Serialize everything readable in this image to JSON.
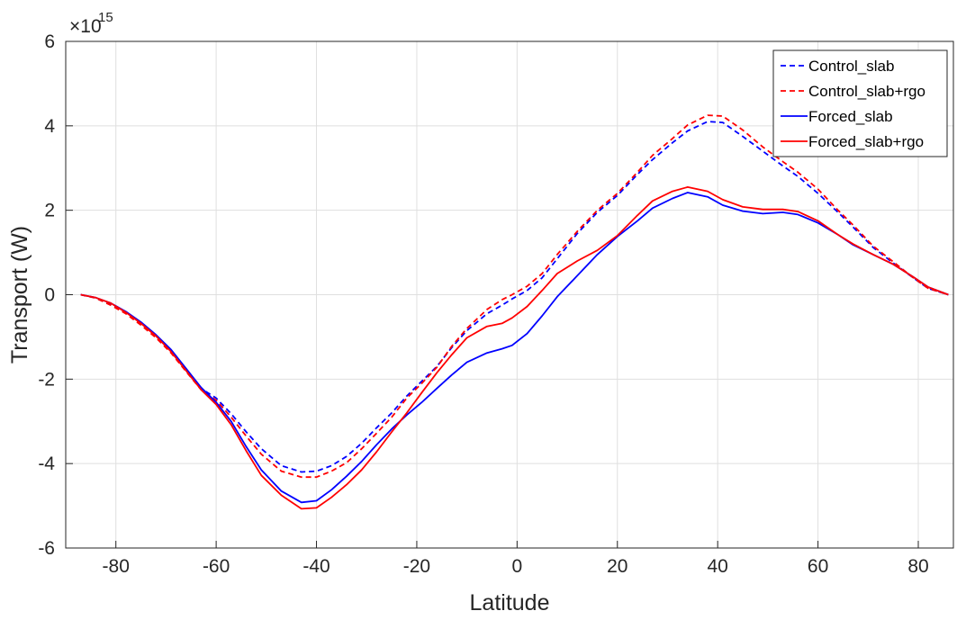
{
  "chart_data": {
    "type": "line",
    "xlabel": "Latitude",
    "ylabel": "Transport (W)",
    "exponent_base": "×10",
    "exponent_power": "15",
    "xlim": [
      -90,
      87
    ],
    "ylim": [
      -6,
      6
    ],
    "xticks": [
      -80,
      -60,
      -40,
      -20,
      0,
      20,
      40,
      60,
      80
    ],
    "yticks": [
      -6,
      -4,
      -2,
      0,
      2,
      4,
      6
    ],
    "grid": true,
    "legend_position": "top-right",
    "x": [
      -87,
      -84,
      -81,
      -78,
      -75,
      -72,
      -69,
      -66,
      -63,
      -60,
      -57,
      -54,
      -51,
      -47,
      -43,
      -40,
      -37,
      -34,
      -31,
      -28,
      -25,
      -22,
      -19,
      -16,
      -13,
      -10,
      -6,
      -3,
      -1,
      2,
      5,
      8,
      12,
      16,
      20,
      24,
      27,
      31,
      34,
      38,
      41,
      45,
      49,
      53,
      56,
      60,
      64,
      67,
      71,
      75,
      79,
      82,
      86
    ],
    "series": [
      {
        "name": "Control_slab",
        "color": "#0000ff",
        "dash": "dashed",
        "values": [
          0,
          -0.07,
          -0.22,
          -0.42,
          -0.68,
          -0.98,
          -1.32,
          -1.78,
          -2.22,
          -2.45,
          -2.82,
          -3.25,
          -3.65,
          -4.05,
          -4.2,
          -4.18,
          -4.05,
          -3.83,
          -3.52,
          -3.15,
          -2.8,
          -2.4,
          -2.05,
          -1.7,
          -1.25,
          -0.85,
          -0.45,
          -0.25,
          -0.1,
          0.1,
          0.4,
          0.85,
          1.45,
          1.95,
          2.35,
          2.85,
          3.2,
          3.6,
          3.88,
          4.1,
          4.08,
          3.75,
          3.4,
          3.05,
          2.8,
          2.4,
          1.95,
          1.6,
          1.12,
          0.75,
          0.4,
          0.15,
          0
        ]
      },
      {
        "name": "Control_slab+rgo",
        "color": "#ff0000",
        "dash": "dashed",
        "values": [
          0,
          -0.08,
          -0.25,
          -0.45,
          -0.72,
          -1.02,
          -1.38,
          -1.82,
          -2.25,
          -2.5,
          -2.9,
          -3.35,
          -3.78,
          -4.18,
          -4.32,
          -4.32,
          -4.18,
          -3.98,
          -3.65,
          -3.28,
          -2.9,
          -2.45,
          -2.1,
          -1.72,
          -1.22,
          -0.8,
          -0.35,
          -0.12,
          0.0,
          0.2,
          0.5,
          0.95,
          1.5,
          2.0,
          2.4,
          2.9,
          3.3,
          3.7,
          4.02,
          4.25,
          4.23,
          3.9,
          3.5,
          3.15,
          2.9,
          2.5,
          2.0,
          1.65,
          1.15,
          0.78,
          0.4,
          0.15,
          0
        ]
      },
      {
        "name": "Forced_slab",
        "color": "#0000ff",
        "dash": "solid",
        "values": [
          0,
          -0.07,
          -0.2,
          -0.4,
          -0.65,
          -0.95,
          -1.3,
          -1.75,
          -2.2,
          -2.55,
          -3.0,
          -3.6,
          -4.15,
          -4.65,
          -4.92,
          -4.88,
          -4.62,
          -4.3,
          -3.95,
          -3.55,
          -3.18,
          -2.85,
          -2.55,
          -2.22,
          -1.9,
          -1.6,
          -1.38,
          -1.28,
          -1.2,
          -0.92,
          -0.5,
          -0.05,
          0.45,
          0.95,
          1.38,
          1.75,
          2.05,
          2.28,
          2.42,
          2.32,
          2.12,
          1.98,
          1.92,
          1.95,
          1.9,
          1.7,
          1.42,
          1.18,
          0.95,
          0.72,
          0.42,
          0.18,
          0
        ]
      },
      {
        "name": "Forced_slab+rgo",
        "color": "#ff0000",
        "dash": "solid",
        "values": [
          0,
          -0.07,
          -0.2,
          -0.42,
          -0.68,
          -0.98,
          -1.35,
          -1.8,
          -2.25,
          -2.6,
          -3.08,
          -3.7,
          -4.28,
          -4.75,
          -5.07,
          -5.05,
          -4.8,
          -4.5,
          -4.15,
          -3.72,
          -3.25,
          -2.8,
          -2.32,
          -1.85,
          -1.42,
          -1.02,
          -0.75,
          -0.68,
          -0.55,
          -0.28,
          0.1,
          0.5,
          0.8,
          1.05,
          1.4,
          1.88,
          2.22,
          2.45,
          2.55,
          2.45,
          2.25,
          2.08,
          2.02,
          2.02,
          1.97,
          1.75,
          1.42,
          1.2,
          0.95,
          0.72,
          0.42,
          0.18,
          0
        ]
      }
    ]
  }
}
